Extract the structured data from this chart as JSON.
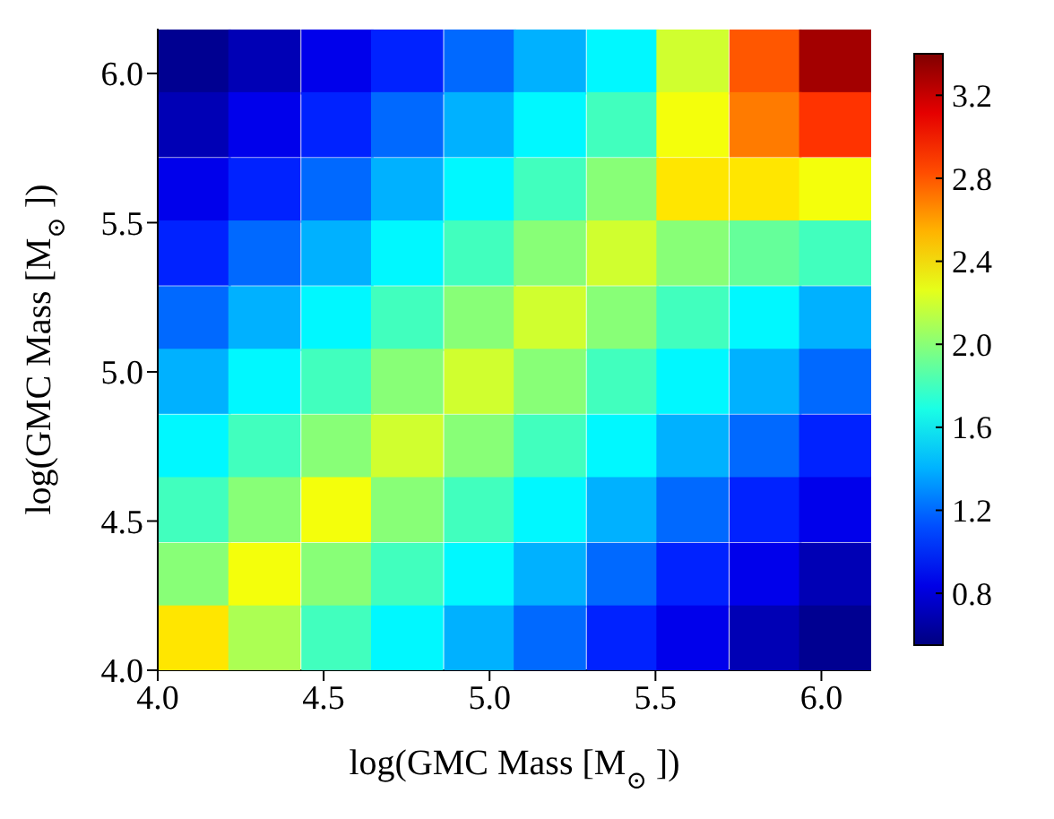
{
  "chart_data": {
    "type": "heatmap",
    "xlabel": "log(GMC Mass [M$_{⊙}$])",
    "ylabel": "log(GMC Mass [M$_{⊙}$])",
    "xlim": [
      4.0,
      6.15
    ],
    "ylim": [
      4.0,
      6.15
    ],
    "xticks": [
      {
        "value": 4,
        "label": "4.0"
      },
      {
        "value": 4.5,
        "label": "4.5"
      },
      {
        "value": 5,
        "label": "5.0"
      },
      {
        "value": 5.5,
        "label": "5.5"
      },
      {
        "value": 6,
        "label": "6.0"
      }
    ],
    "yticks": [
      {
        "value": 4,
        "label": "4.0"
      },
      {
        "value": 4.5,
        "label": "4.5"
      },
      {
        "value": 5,
        "label": "5.0"
      },
      {
        "value": 5.5,
        "label": "5.5"
      },
      {
        "value": 6,
        "label": "6.0"
      }
    ],
    "x": [
      4.11,
      4.32,
      4.54,
      4.75,
      4.97,
      5.18,
      5.4,
      5.61,
      5.83,
      6.04
    ],
    "y": [
      6.04,
      5.83,
      5.61,
      5.4,
      5.18,
      4.97,
      4.75,
      4.54,
      4.32,
      4.11
    ],
    "cells": [
      [
        0.6,
        0.7,
        0.85,
        1.0,
        1.2,
        1.4,
        1.6,
        2.2,
        2.8,
        3.3
      ],
      [
        0.7,
        0.85,
        1.0,
        1.2,
        1.4,
        1.6,
        1.8,
        2.3,
        2.7,
        2.9
      ],
      [
        0.85,
        1.0,
        1.2,
        1.4,
        1.6,
        1.8,
        2.0,
        2.4,
        2.4,
        2.3
      ],
      [
        1.0,
        1.2,
        1.4,
        1.6,
        1.8,
        2.0,
        2.2,
        2.0,
        1.9,
        1.8
      ],
      [
        1.2,
        1.4,
        1.6,
        1.8,
        2.0,
        2.2,
        2.0,
        1.8,
        1.6,
        1.4
      ],
      [
        1.4,
        1.6,
        1.8,
        2.0,
        2.2,
        2.0,
        1.8,
        1.6,
        1.4,
        1.2
      ],
      [
        1.6,
        1.8,
        2.0,
        2.2,
        2.0,
        1.8,
        1.6,
        1.4,
        1.2,
        1.0
      ],
      [
        1.8,
        2.0,
        2.3,
        2.0,
        1.8,
        1.6,
        1.4,
        1.2,
        1.0,
        0.85
      ],
      [
        2.0,
        2.3,
        2.0,
        1.8,
        1.6,
        1.4,
        1.2,
        1.0,
        0.85,
        0.7
      ],
      [
        2.4,
        2.1,
        1.8,
        1.6,
        1.4,
        1.2,
        1.0,
        0.85,
        0.7,
        0.6
      ]
    ],
    "clim": [
      0.55,
      3.4
    ],
    "cticks": [
      {
        "value": 0.8,
        "label": "0.8"
      },
      {
        "value": 1.2,
        "label": "1.2"
      },
      {
        "value": 1.6,
        "label": "1.6"
      },
      {
        "value": 2.0,
        "label": "2.0"
      },
      {
        "value": 2.4,
        "label": "2.4"
      },
      {
        "value": 2.8,
        "label": "2.8"
      },
      {
        "value": 3.2,
        "label": "3.2"
      }
    ],
    "grid": false
  }
}
